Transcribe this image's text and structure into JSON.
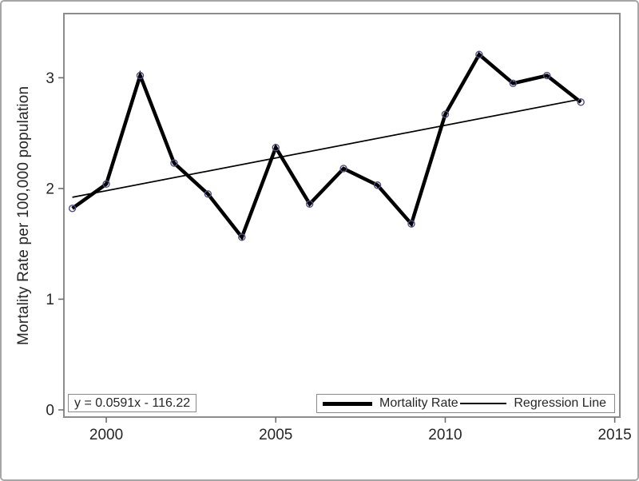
{
  "figure": {
    "y_axis_title": "Mortality Rate per 100,000 population",
    "equation_label": "y = 0.0591x - 116.22",
    "background_color": "#ffffff",
    "frame_color": "#8c8c8c",
    "tick_color": "#6e6e6e",
    "text_color": "#262626"
  },
  "legend": {
    "items": [
      {
        "label": "Mortality Rate",
        "sample": "thick-line"
      },
      {
        "label": "Regression Line",
        "sample": "thin-line"
      }
    ]
  },
  "chart_data": {
    "type": "line",
    "title": "",
    "xlabel": "",
    "ylabel": "Mortality Rate per 100,000 population",
    "x": [
      1999,
      2000,
      2001,
      2002,
      2003,
      2004,
      2005,
      2006,
      2007,
      2008,
      2009,
      2010,
      2011,
      2012,
      2013,
      2014
    ],
    "series": [
      {
        "name": "Mortality Rate",
        "type": "line+markers",
        "color": "#000000",
        "line_width": 4.5,
        "marker": "open-circle",
        "marker_color": "#4c4c80",
        "values": [
          1.82,
          2.04,
          3.02,
          2.23,
          1.95,
          1.56,
          2.37,
          1.86,
          2.18,
          2.03,
          1.68,
          2.67,
          3.21,
          2.95,
          3.02,
          2.78
        ]
      },
      {
        "name": "Regression Line",
        "type": "line",
        "color": "#000000",
        "line_width": 1.7,
        "slope": 0.0591,
        "intercept": -116.22,
        "x_start": 1999,
        "x_end": 2014
      }
    ],
    "x_ticks": [
      2000,
      2005,
      2010,
      2015
    ],
    "y_ticks": [
      0,
      1,
      2,
      3
    ],
    "xlim": [
      1998.75,
      2015.15
    ],
    "ylim": [
      -0.065,
      3.58
    ],
    "grid": false,
    "legend_position": "bottom-right-inside",
    "annotation": "y = 0.0591x - 116.22"
  }
}
